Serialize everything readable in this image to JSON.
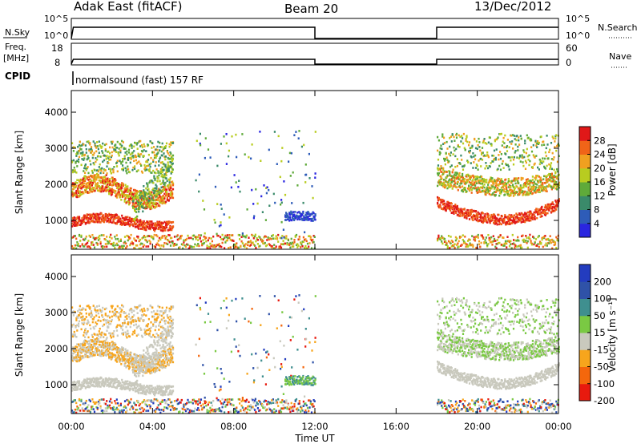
{
  "header": {
    "radar_title": "Adak East (fitACF)",
    "beam": "Beam 20",
    "date": "13/Dec/2012"
  },
  "chart_data": [
    {
      "type": "line",
      "panel": "nsky-nsearch",
      "left_label": "N.Sky",
      "right_label": "N.Search",
      "left_ticks": [
        "10^5",
        "10^0"
      ],
      "right_ticks": [
        "10^5",
        "10^0"
      ],
      "x_range_hours": [
        0,
        24
      ],
      "gap_hours": [
        12,
        18
      ],
      "series": [
        {
          "values": [
            [
              0.0,
              "10^0"
            ],
            [
              0.1,
              "10^4"
            ],
            [
              12.0,
              "10^4"
            ],
            [
              12.0,
              "10^0"
            ],
            [
              18.0,
              "10^0"
            ],
            [
              18.0,
              "10^4"
            ],
            [
              24.0,
              "10^4"
            ]
          ]
        }
      ]
    },
    {
      "type": "line",
      "panel": "freq-nave",
      "left_label": "Freq.",
      "left_unit": "[MHz]",
      "right_label": "Nave",
      "left_ticks": [
        "18",
        "8"
      ],
      "right_ticks": [
        "60",
        "0"
      ],
      "x_range_hours": [
        0,
        24
      ],
      "series": [
        {
          "values": [
            [
              0.0,
              8
            ],
            [
              0.1,
              10.5
            ],
            [
              12.0,
              10.5
            ],
            [
              12.0,
              8
            ],
            [
              18.0,
              8
            ],
            [
              18.0,
              10.5
            ],
            [
              24.0,
              10.5
            ]
          ]
        }
      ]
    },
    {
      "type": "bar",
      "panel": "cpid",
      "label": "CPID",
      "mode_text": "normalsound (fast) 157 RF"
    },
    {
      "type": "heatmap",
      "panel": "power",
      "ylabel": "Slant Range [km]",
      "yticks": [
        1000,
        2000,
        3000,
        4000
      ],
      "ylim": [
        200,
        4600
      ],
      "xlim_hours": [
        0,
        24
      ],
      "colorbar_label": "Power [dB]",
      "colorbar_ticks": [
        4,
        8,
        12,
        16,
        20,
        24,
        28
      ],
      "colorbar_range": [
        0,
        32
      ],
      "regions": [
        {
          "t": [
            0.0,
            5.0
          ],
          "range_km": [
            800,
            3200
          ],
          "value": "22-30",
          "desc": "E/F echoes, strongest near 1000 km"
        },
        {
          "t": [
            7.5,
            12.0
          ],
          "range_km": [
            300,
            3600
          ],
          "value": "4-18",
          "desc": "sparse scatter"
        },
        {
          "t": [
            10.5,
            12.0
          ],
          "range_km": [
            950,
            1200
          ],
          "value": "4-8"
        },
        {
          "t": [
            18.0,
            24.0
          ],
          "range_km": [
            700,
            3500
          ],
          "value": "16-30",
          "desc": "descending bands"
        }
      ]
    },
    {
      "type": "heatmap",
      "panel": "velocity",
      "ylabel": "Slant Range [km]",
      "yticks": [
        1000,
        2000,
        3000,
        4000
      ],
      "ylim": [
        200,
        4600
      ],
      "xlim_hours": [
        0,
        24
      ],
      "xticks": [
        "00:00",
        "04:00",
        "08:00",
        "12:00",
        "16:00",
        "20:00",
        "00:00"
      ],
      "xlabel": "Time UT",
      "colorbar_label": "Velocity [m s⁻¹]",
      "colorbar_ticks": [
        200,
        100,
        50,
        15,
        -15,
        -50,
        -100,
        -200
      ],
      "regions": [
        {
          "t": [
            0.0,
            5.0
          ],
          "range_km": [
            800,
            3200
          ],
          "value": "-100 to 15"
        },
        {
          "t": [
            10.5,
            12.0
          ],
          "range_km": [
            950,
            1200
          ],
          "value": "15 to 100"
        },
        {
          "t": [
            18.0,
            24.0
          ],
          "range_km": [
            700,
            3500
          ],
          "value": "-15 to 15"
        }
      ]
    }
  ],
  "colors": {
    "power": [
      "#2a26e0",
      "#2e5cb8",
      "#3a8a6a",
      "#5faa3a",
      "#b8cc20",
      "#f0a020",
      "#f06418",
      "#e01818"
    ],
    "velocity": [
      "#e81a0e",
      "#f4670c",
      "#f7a51c",
      "#c9c9bd",
      "#7ac943",
      "#3f8f8f",
      "#2f52a8",
      "#233cbf"
    ]
  }
}
